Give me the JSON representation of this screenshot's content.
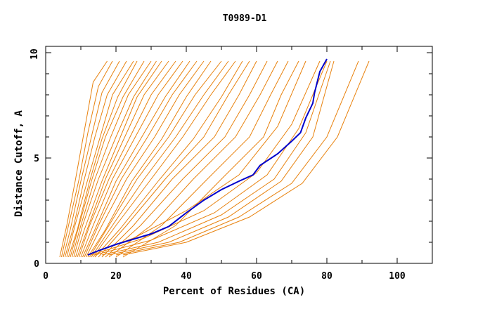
{
  "chart_data": {
    "type": "line",
    "title": "T0989-D1",
    "xlabel": "Percent of Residues (CA)",
    "ylabel": "Distance Cutoff, A",
    "xlim": [
      0,
      100
    ],
    "ylim": [
      0,
      10
    ],
    "x_ticks": [
      0,
      20,
      40,
      60,
      80,
      100
    ],
    "y_ticks": [
      0,
      5,
      10
    ],
    "grid": false,
    "legend": "none",
    "colors": {
      "background": "#ffffff",
      "others": "#E8820E",
      "highlight": "#0000CC",
      "axis": "#000000"
    },
    "highlight_series": {
      "x": [
        12,
        15,
        20,
        25,
        30,
        35,
        40,
        45,
        50,
        55,
        59,
        61,
        66,
        70,
        72.5,
        74,
        76,
        76.5,
        78,
        80
      ],
      "y": [
        0.4,
        0.6,
        0.9,
        1.15,
        1.4,
        1.75,
        2.4,
        3.0,
        3.5,
        3.9,
        4.2,
        4.65,
        5.2,
        5.8,
        6.2,
        6.9,
        7.6,
        8.1,
        9.1,
        9.7
      ]
    },
    "series": [
      {
        "x": [
          4.0,
          6.0,
          8.5,
          11.0,
          13.5,
          17.5
        ],
        "y": [
          0.3,
          1.8,
          4.0,
          6.3,
          8.6,
          9.6
        ]
      },
      {
        "x": [
          4.5,
          6.5,
          9.5,
          12.0,
          15.0,
          19.0
        ],
        "y": [
          0.3,
          1.8,
          4.0,
          6.2,
          8.4,
          9.6
        ]
      },
      {
        "x": [
          5.0,
          7.0,
          10.0,
          13.0,
          16.0,
          21.0
        ],
        "y": [
          0.3,
          1.6,
          3.9,
          6.0,
          8.1,
          9.6
        ]
      },
      {
        "x": [
          5.5,
          8.0,
          11.0,
          14.0,
          17.5,
          23.0
        ],
        "y": [
          0.3,
          1.8,
          4.0,
          6.0,
          8.0,
          9.6
        ]
      },
      {
        "x": [
          6.0,
          8.5,
          12.0,
          15.5,
          19.0,
          25.0
        ],
        "y": [
          0.3,
          1.9,
          4.0,
          6.0,
          8.0,
          9.6
        ]
      },
      {
        "x": [
          6.5,
          9.0,
          12.5,
          16.0,
          20.5,
          26.0
        ],
        "y": [
          0.3,
          1.6,
          3.9,
          5.9,
          7.9,
          9.6
        ]
      },
      {
        "x": [
          7.0,
          9.5,
          13.0,
          17.0,
          22.0,
          28.0
        ],
        "y": [
          0.3,
          1.8,
          3.9,
          6.0,
          7.9,
          9.6
        ]
      },
      {
        "x": [
          7.5,
          10.0,
          14.0,
          18.5,
          23.5,
          30.0
        ],
        "y": [
          0.3,
          1.8,
          4.0,
          6.0,
          8.0,
          9.6
        ]
      },
      {
        "x": [
          8.0,
          10.5,
          15.0,
          20.0,
          25.0,
          31.5
        ],
        "y": [
          0.3,
          1.8,
          4.0,
          6.0,
          7.9,
          9.6
        ]
      },
      {
        "x": [
          8.5,
          11.0,
          16.0,
          21.0,
          26.0,
          33.0
        ],
        "y": [
          0.3,
          1.6,
          3.9,
          5.9,
          7.9,
          9.6
        ]
      },
      {
        "x": [
          9.0,
          12.0,
          17.0,
          22.5,
          28.0,
          35.0
        ],
        "y": [
          0.3,
          1.7,
          4.0,
          6.0,
          8.0,
          9.6
        ]
      },
      {
        "x": [
          9.5,
          12.5,
          18.0,
          24.0,
          30.0,
          37.0
        ],
        "y": [
          0.3,
          1.8,
          4.0,
          6.0,
          8.0,
          9.6
        ]
      },
      {
        "x": [
          10.0,
          13.5,
          19.0,
          25.5,
          32.0,
          39.0
        ],
        "y": [
          0.3,
          1.8,
          4.0,
          6.0,
          8.0,
          9.6
        ]
      },
      {
        "x": [
          10.5,
          14.0,
          20.0,
          27.0,
          34.0,
          41.0
        ],
        "y": [
          0.3,
          1.6,
          3.9,
          5.9,
          7.9,
          9.6
        ]
      },
      {
        "x": [
          11.0,
          15.0,
          21.5,
          29.0,
          36.0,
          43.0
        ],
        "y": [
          0.3,
          1.8,
          4.0,
          6.0,
          8.0,
          9.6
        ]
      },
      {
        "x": [
          11.5,
          16.0,
          23.0,
          31.0,
          38.0,
          45.0
        ],
        "y": [
          0.3,
          1.8,
          4.0,
          6.0,
          8.0,
          9.6
        ]
      },
      {
        "x": [
          12.0,
          17.0,
          24.5,
          33.0,
          40.0,
          47.0
        ],
        "y": [
          0.3,
          1.6,
          3.9,
          5.9,
          7.9,
          9.6
        ]
      },
      {
        "x": [
          12.5,
          18.0,
          26.0,
          35.0,
          42.5,
          50.0
        ],
        "y": [
          0.3,
          1.8,
          4.0,
          6.0,
          8.0,
          9.6
        ]
      },
      {
        "x": [
          13.0,
          19.0,
          28.0,
          37.0,
          45.0,
          52.0
        ],
        "y": [
          0.3,
          1.8,
          4.0,
          6.0,
          8.0,
          9.6
        ]
      },
      {
        "x": [
          13.5,
          20.0,
          30.0,
          39.0,
          47.0,
          54.0
        ],
        "y": [
          0.3,
          1.8,
          4.0,
          6.0,
          8.0,
          9.6
        ]
      },
      {
        "x": [
          14.0,
          21.0,
          32.0,
          42.0,
          50.0,
          56.0
        ],
        "y": [
          0.3,
          1.6,
          3.9,
          5.9,
          7.9,
          9.6
        ]
      },
      {
        "x": [
          15.0,
          23.0,
          34.0,
          45.0,
          52.0,
          58.0
        ],
        "y": [
          0.3,
          1.8,
          4.0,
          6.0,
          8.0,
          9.6
        ]
      },
      {
        "x": [
          16.0,
          25.0,
          36.0,
          48.0,
          55.0,
          60.0
        ],
        "y": [
          0.3,
          1.8,
          4.0,
          6.0,
          8.0,
          9.6
        ]
      },
      {
        "x": [
          17.0,
          27.0,
          39.0,
          51.0,
          58.0,
          63.0
        ],
        "y": [
          0.3,
          1.8,
          4.0,
          6.0,
          8.0,
          9.6
        ]
      },
      {
        "x": [
          18.0,
          30.0,
          42.0,
          54.0,
          61.0,
          66.0
        ],
        "y": [
          0.3,
          1.8,
          4.0,
          6.0,
          8.0,
          9.6
        ]
      },
      {
        "x": [
          20.0,
          33.0,
          46.0,
          58.0,
          64.0,
          69.0
        ],
        "y": [
          0.3,
          1.8,
          4.0,
          6.0,
          8.0,
          9.6
        ]
      },
      {
        "x": [
          22.0,
          37.0,
          50.0,
          62.0,
          67.0,
          72.0
        ],
        "y": [
          0.3,
          1.8,
          4.0,
          6.0,
          8.0,
          9.6
        ]
      },
      {
        "x": [
          12.0,
          25.0,
          40.0,
          55.0,
          66.0,
          74.0
        ],
        "y": [
          0.4,
          1.2,
          2.5,
          4.2,
          6.5,
          9.6
        ]
      },
      {
        "x": [
          13.0,
          28.0,
          45.0,
          60.0,
          70.0,
          78.0
        ],
        "y": [
          0.4,
          1.2,
          2.5,
          4.3,
          6.6,
          9.6
        ]
      },
      {
        "x": [
          14.0,
          30.0,
          48.0,
          63.0,
          72.0,
          80.0
        ],
        "y": [
          0.4,
          1.1,
          2.4,
          4.2,
          6.4,
          9.6
        ]
      },
      {
        "x": [
          16.0,
          32.0,
          50.0,
          65.0,
          74.0,
          81.0
        ],
        "y": [
          0.4,
          1.0,
          2.3,
          4.0,
          6.2,
          9.6
        ]
      },
      {
        "x": [
          18.0,
          35.0,
          52.0,
          67.0,
          76.0,
          82.0
        ],
        "y": [
          0.4,
          1.0,
          2.2,
          3.9,
          6.0,
          9.6
        ]
      },
      {
        "x": [
          20.0,
          38.0,
          55.0,
          70.0,
          80.0,
          89.0
        ],
        "y": [
          0.4,
          1.0,
          2.2,
          3.8,
          6.0,
          9.6
        ]
      },
      {
        "x": [
          22.0,
          40.0,
          58.0,
          73.0,
          83.0,
          92.0
        ],
        "y": [
          0.4,
          1.0,
          2.2,
          3.8,
          6.0,
          9.6
        ]
      }
    ]
  }
}
